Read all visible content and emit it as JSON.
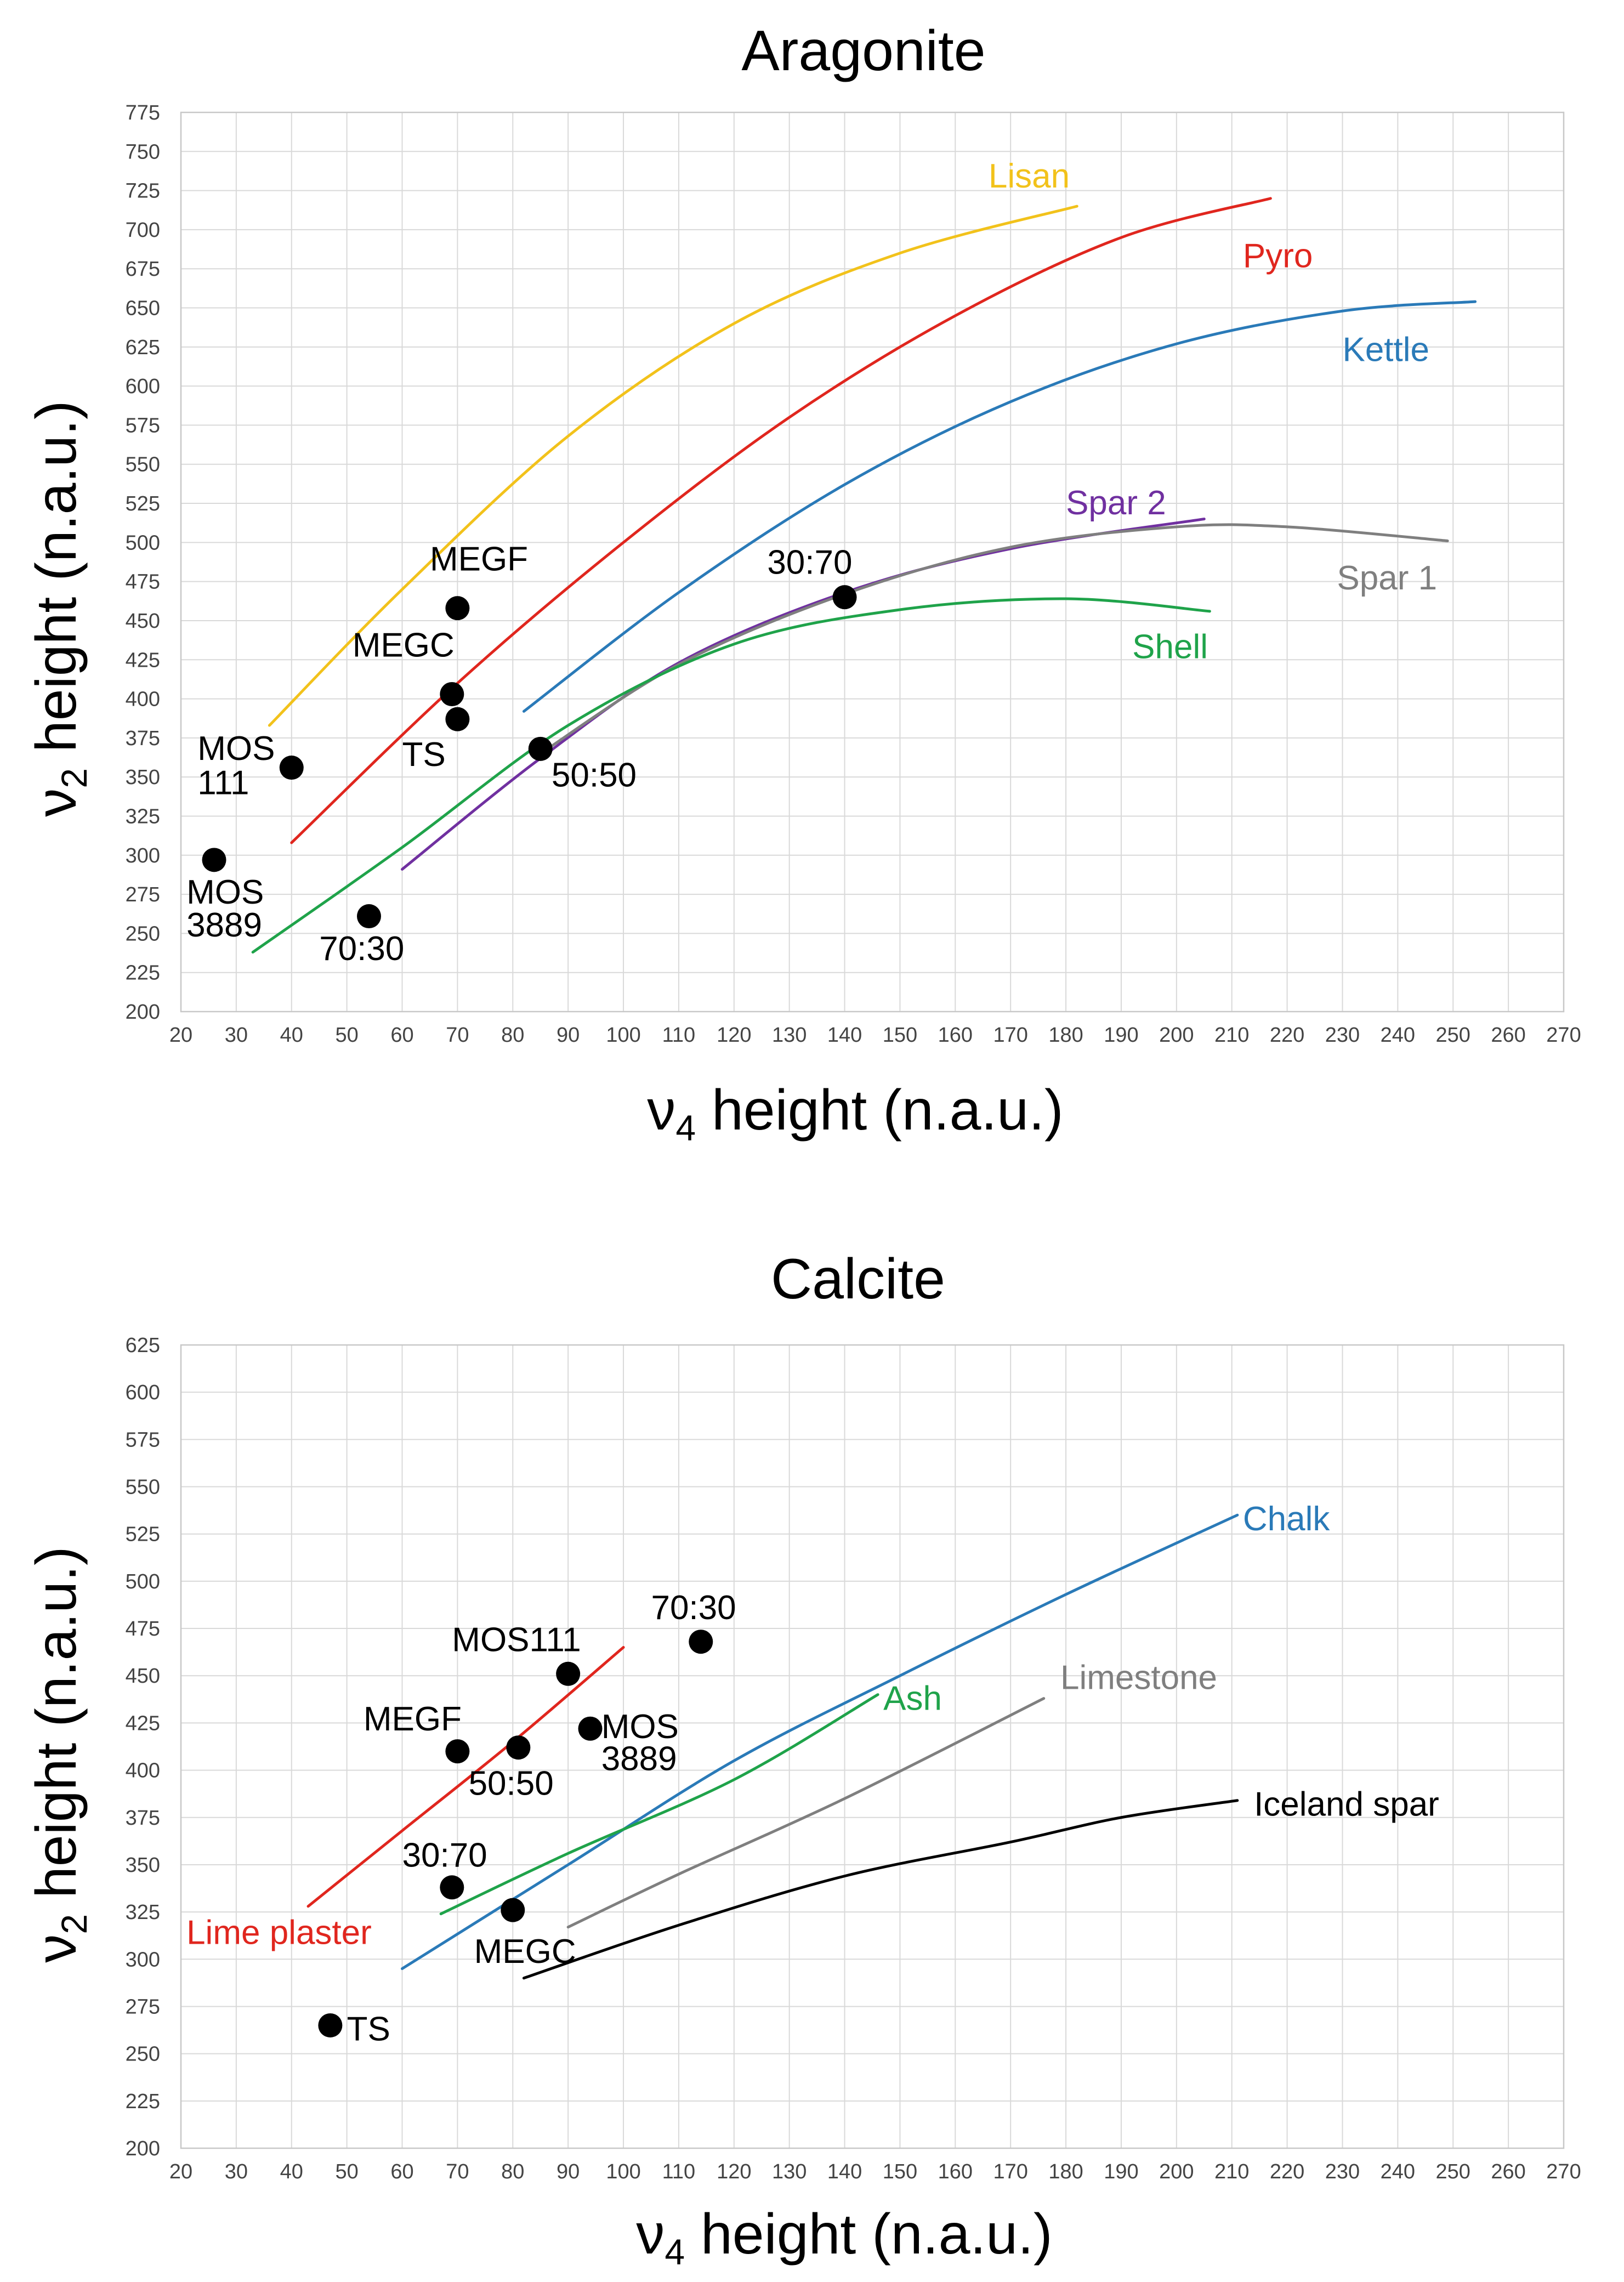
{
  "chart_data": [
    {
      "type": "scatter",
      "title": "Aragonite",
      "xlabel_main": "ν",
      "xlabel_sub": "4",
      "xlabel_rest": " height (n.a.u.)",
      "ylabel_main": "ν",
      "ylabel_sub": "2",
      "ylabel_rest": " height (n.a.u.)",
      "xlim": [
        20,
        270
      ],
      "ylim": [
        200,
        775
      ],
      "xstep": 10,
      "ystep": 25,
      "grid": true,
      "curves": [
        {
          "name": "Lisan",
          "color": "#f2c21b",
          "points": [
            [
              36,
              383
            ],
            [
              60,
              470
            ],
            [
              90,
              568
            ],
            [
              120,
              640
            ],
            [
              150,
              685
            ],
            [
              182,
              715
            ]
          ],
          "label_at": [
            166,
            727
          ]
        },
        {
          "name": "Pyro",
          "color": "#e0261e",
          "points": [
            [
              40,
              308
            ],
            [
              70,
              410
            ],
            [
              100,
              500
            ],
            [
              130,
              580
            ],
            [
              160,
              645
            ],
            [
              190,
              695
            ],
            [
              217,
              720
            ]
          ],
          "label_at": [
            212,
            676
          ]
        },
        {
          "name": "Kettle",
          "color": "#2a7ab8",
          "points": [
            [
              82,
              392
            ],
            [
              110,
              468
            ],
            [
              140,
              537
            ],
            [
              170,
              590
            ],
            [
              200,
              627
            ],
            [
              230,
              648
            ],
            [
              254,
              654
            ]
          ],
          "label_at": [
            230,
            616
          ]
        },
        {
          "name": "Spar 2",
          "color": "#7030a0",
          "points": [
            [
              60,
              291
            ],
            [
              85,
              362
            ],
            [
              110,
              423
            ],
            [
              140,
              468
            ],
            [
              170,
              496
            ],
            [
              205,
              515
            ]
          ],
          "label_at": [
            180,
            518
          ]
        },
        {
          "name": "Spar 1",
          "color": "#7f7f7f",
          "points": [
            [
              85,
              365
            ],
            [
              110,
              422
            ],
            [
              140,
              467
            ],
            [
              170,
              497
            ],
            [
              200,
              510
            ],
            [
              220,
              510
            ],
            [
              249,
              501
            ]
          ],
          "label_at": [
            229,
            470
          ]
        },
        {
          "name": "Shell",
          "color": "#1fa34a",
          "points": [
            [
              33,
              238
            ],
            [
              60,
              305
            ],
            [
              90,
              383
            ],
            [
              120,
              435
            ],
            [
              150,
              457
            ],
            [
              180,
              464
            ],
            [
              206,
              456
            ]
          ],
          "label_at": [
            192,
            426
          ]
        }
      ],
      "points": [
        {
          "label": "MEGF",
          "x": 70,
          "y": 458,
          "label_at": [
            65,
            482
          ]
        },
        {
          "label": "MEGC",
          "x": 69,
          "y": 403,
          "label_at": [
            51,
            427
          ]
        },
        {
          "label": "TS",
          "x": 70,
          "y": 387,
          "label_at": [
            60,
            357
          ]
        },
        {
          "label": "MOS",
          "label2": "111",
          "x": 40,
          "y": 356,
          "label_at": [
            23,
            361
          ],
          "label2_at": [
            23,
            339
          ]
        },
        {
          "label": "MOS",
          "label2": "3889",
          "x": 26,
          "y": 297,
          "label_at": [
            21,
            269
          ],
          "label2_at": [
            21,
            248
          ]
        },
        {
          "label": "70:30",
          "x": 54,
          "y": 261,
          "label_at": [
            45,
            233
          ]
        },
        {
          "label": "50:50",
          "x": 85,
          "y": 368,
          "label_at": [
            87,
            344
          ]
        },
        {
          "label": "30:70",
          "x": 140,
          "y": 465,
          "label_at": [
            126,
            480
          ]
        }
      ]
    },
    {
      "type": "scatter",
      "title": "Calcite",
      "xlabel_main": "ν",
      "xlabel_sub": "4",
      "xlabel_rest": " height (n.a.u.)",
      "ylabel_main": "ν",
      "ylabel_sub": "2",
      "ylabel_rest": " height (n.a.u.)",
      "xlim": [
        20,
        270
      ],
      "ylim": [
        200,
        625
      ],
      "xstep": 10,
      "ystep": 25,
      "grid": true,
      "curves": [
        {
          "name": "Lime plaster",
          "color": "#e0261e",
          "points": [
            [
              43,
              328
            ],
            [
              60,
              368
            ],
            [
              80,
              415
            ],
            [
              100,
              465
            ]
          ],
          "label_at": [
            21,
            308
          ]
        },
        {
          "name": "Chalk",
          "color": "#2a7ab8",
          "points": [
            [
              60,
              295
            ],
            [
              90,
              350
            ],
            [
              120,
              405
            ],
            [
              150,
              450
            ],
            [
              180,
              493
            ],
            [
              211,
              535
            ]
          ],
          "label_at": [
            212,
            527
          ]
        },
        {
          "name": "Ash",
          "color": "#1fa34a",
          "points": [
            [
              67,
              324
            ],
            [
              90,
              356
            ],
            [
              120,
              395
            ],
            [
              146,
              440
            ]
          ],
          "label_at": [
            147,
            432
          ]
        },
        {
          "name": "Limestone",
          "color": "#7f7f7f",
          "points": [
            [
              90,
              317
            ],
            [
              110,
              345
            ],
            [
              140,
              385
            ],
            [
              176,
              438
            ]
          ],
          "label_at": [
            179,
            443
          ]
        },
        {
          "name": "Iceland spar",
          "color": "#000000",
          "points": [
            [
              82,
              290
            ],
            [
              110,
              318
            ],
            [
              140,
              344
            ],
            [
              170,
              362
            ],
            [
              190,
              375
            ],
            [
              211,
              384
            ]
          ],
          "label_at": [
            214,
            376
          ]
        }
      ],
      "points": [
        {
          "label": "MOS111",
          "x": 90,
          "y": 451,
          "label_at": [
            69,
            463
          ]
        },
        {
          "label": "70:30",
          "x": 114,
          "y": 468,
          "label_at": [
            105,
            480
          ]
        },
        {
          "label": "MEGF",
          "x": 70,
          "y": 410,
          "label_at": [
            53,
            421
          ]
        },
        {
          "label": "50:50",
          "x": 81,
          "y": 412,
          "label_at": [
            72,
            387
          ]
        },
        {
          "label": "MOS",
          "label2": "3889",
          "x": 94,
          "y": 422,
          "label_at": [
            96,
            417
          ],
          "label2_at": [
            96,
            400
          ]
        },
        {
          "label": "30:70",
          "x": 69,
          "y": 338,
          "label_at": [
            60,
            349
          ]
        },
        {
          "label": "MEGC",
          "x": 80,
          "y": 326,
          "label_at": [
            73,
            298
          ]
        },
        {
          "label": "TS",
          "x": 47,
          "y": 265,
          "label_at": [
            50,
            257
          ]
        }
      ]
    }
  ]
}
